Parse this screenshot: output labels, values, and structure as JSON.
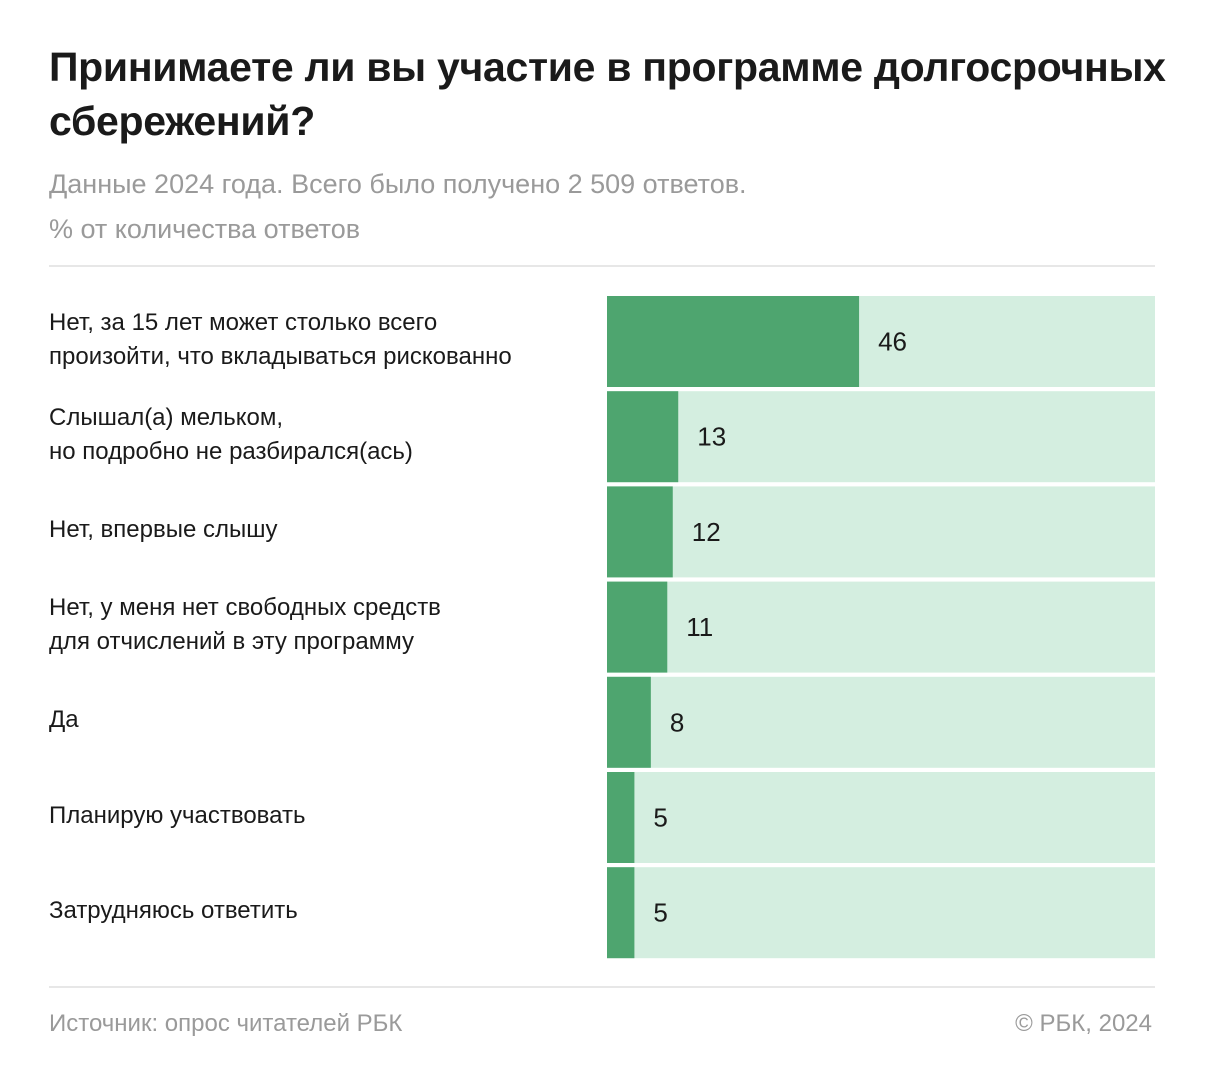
{
  "header": {
    "title": "Принимаете ли вы участие в программе долгосрочных сбережений?",
    "subtitle": "Данные 2024 года. Всего было получено 2 509 ответов.",
    "unit_note": "% от количества ответов"
  },
  "footer": {
    "source": "Источник: опрос читателей РБК",
    "copyright": "© РБК, 2024"
  },
  "colors": {
    "bar_fill": "#4ea56f",
    "bar_track": "#d4eee0",
    "value_text": "#1a1a1a"
  },
  "chart_data": {
    "type": "bar",
    "orientation": "horizontal",
    "title": "Принимаете ли вы участие в программе долгосрочных сбережений?",
    "subtitle": "Данные 2024 года. Всего было получено 2 509 ответов.",
    "unit": "% от количества ответов",
    "xlim": [
      0,
      100
    ],
    "grid": false,
    "legend": "none",
    "categories": [
      "Нет, за 15 лет может столько всего\nпроизойти, что вкладываться рискованно",
      "Слышал(а) мельком,\nно подробно не разбирался(ась)",
      "Нет, впервые слышу",
      "Нет, у меня нет свободных средств\nдля отчислений в эту программу",
      "Да",
      "Планирую участвовать",
      "Затрудняюсь ответить"
    ],
    "values": [
      46,
      13,
      12,
      11,
      8,
      5,
      5
    ]
  }
}
